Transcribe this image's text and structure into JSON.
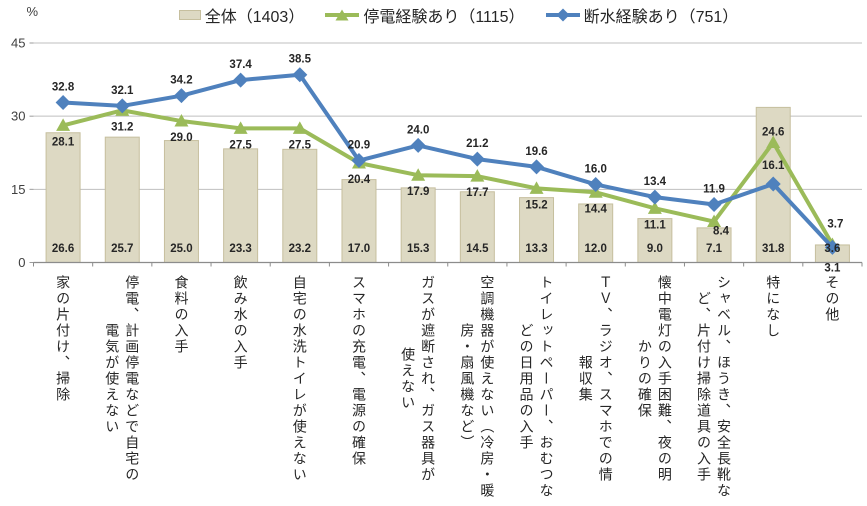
{
  "axis": {
    "unit": "%"
  },
  "chart_data": {
    "type": "bar+line",
    "title": "",
    "categories": [
      "家の片付け、掃除",
      "停電、計画停電などで自宅の電気が使えない",
      "食料の入手",
      "飲み水の入手",
      "自宅の水洗トイレが使えない",
      "スマホの充電、電源の確保",
      "ガスが遮断され、ガス器具が使えない",
      "空調機器が使えない（冷房・暖房・扇風機など）",
      "トイレットペーパー、おむつなどの日用品の入手",
      "ＴＶ、ラジオ、スマホでの情報収集",
      "懐中電灯の入手困難、夜の明かりの確保",
      "シャベル、ほうき、安全長靴など、片付け掃除道具の入手",
      "特になし",
      "その他"
    ],
    "category_lines": [
      [
        "家の片付け、掃除"
      ],
      [
        "停電、計画停電などで自宅の",
        "電気が使えない"
      ],
      [
        "食料の入手"
      ],
      [
        "飲み水の入手"
      ],
      [
        "自宅の水洗トイレが使えない"
      ],
      [
        "スマホの充電、電源の確保"
      ],
      [
        "ガスが遮断され、ガス器具が",
        "使えない"
      ],
      [
        "空調機器が使えない（冷房・暖",
        "房・扇風機など）"
      ],
      [
        "トイレットペーパー、おむつな",
        "どの日用品の入手"
      ],
      [
        "ＴＶ、ラジオ、スマホでの情",
        "報収集"
      ],
      [
        "懐中電灯の入手困難、夜の明",
        "かりの確保"
      ],
      [
        "シャベル、ほうき、安全長靴な",
        "ど、片付け掃除道具の入手"
      ],
      [
        "特になし"
      ],
      [
        "その他"
      ]
    ],
    "yticks": [
      0,
      15,
      30,
      45
    ],
    "ylim": [
      0,
      45
    ],
    "ylabel": "%",
    "legend_position": "top",
    "series": [
      {
        "name": "全体（1403）",
        "type": "bar",
        "color": "#ddd9c3",
        "border_color": "#c6bf9e",
        "values": [
          26.6,
          25.7,
          25.0,
          23.3,
          23.2,
          17.0,
          15.3,
          14.5,
          13.3,
          12.0,
          9.0,
          7.1,
          31.8,
          3.6
        ]
      },
      {
        "name": "停電経験あり（1115）",
        "type": "line",
        "marker": "triangle",
        "color": "#9bbb59",
        "values": [
          28.1,
          31.2,
          29.0,
          27.5,
          27.5,
          20.4,
          17.9,
          17.7,
          15.2,
          14.4,
          11.1,
          8.4,
          24.6,
          3.7
        ]
      },
      {
        "name": "断水経験あり（751）",
        "type": "line",
        "marker": "diamond",
        "color": "#4f81bd",
        "values": [
          32.8,
          32.1,
          34.2,
          37.4,
          38.5,
          20.9,
          24.0,
          21.2,
          19.6,
          16.0,
          13.4,
          11.9,
          16.1,
          3.1
        ]
      }
    ]
  }
}
